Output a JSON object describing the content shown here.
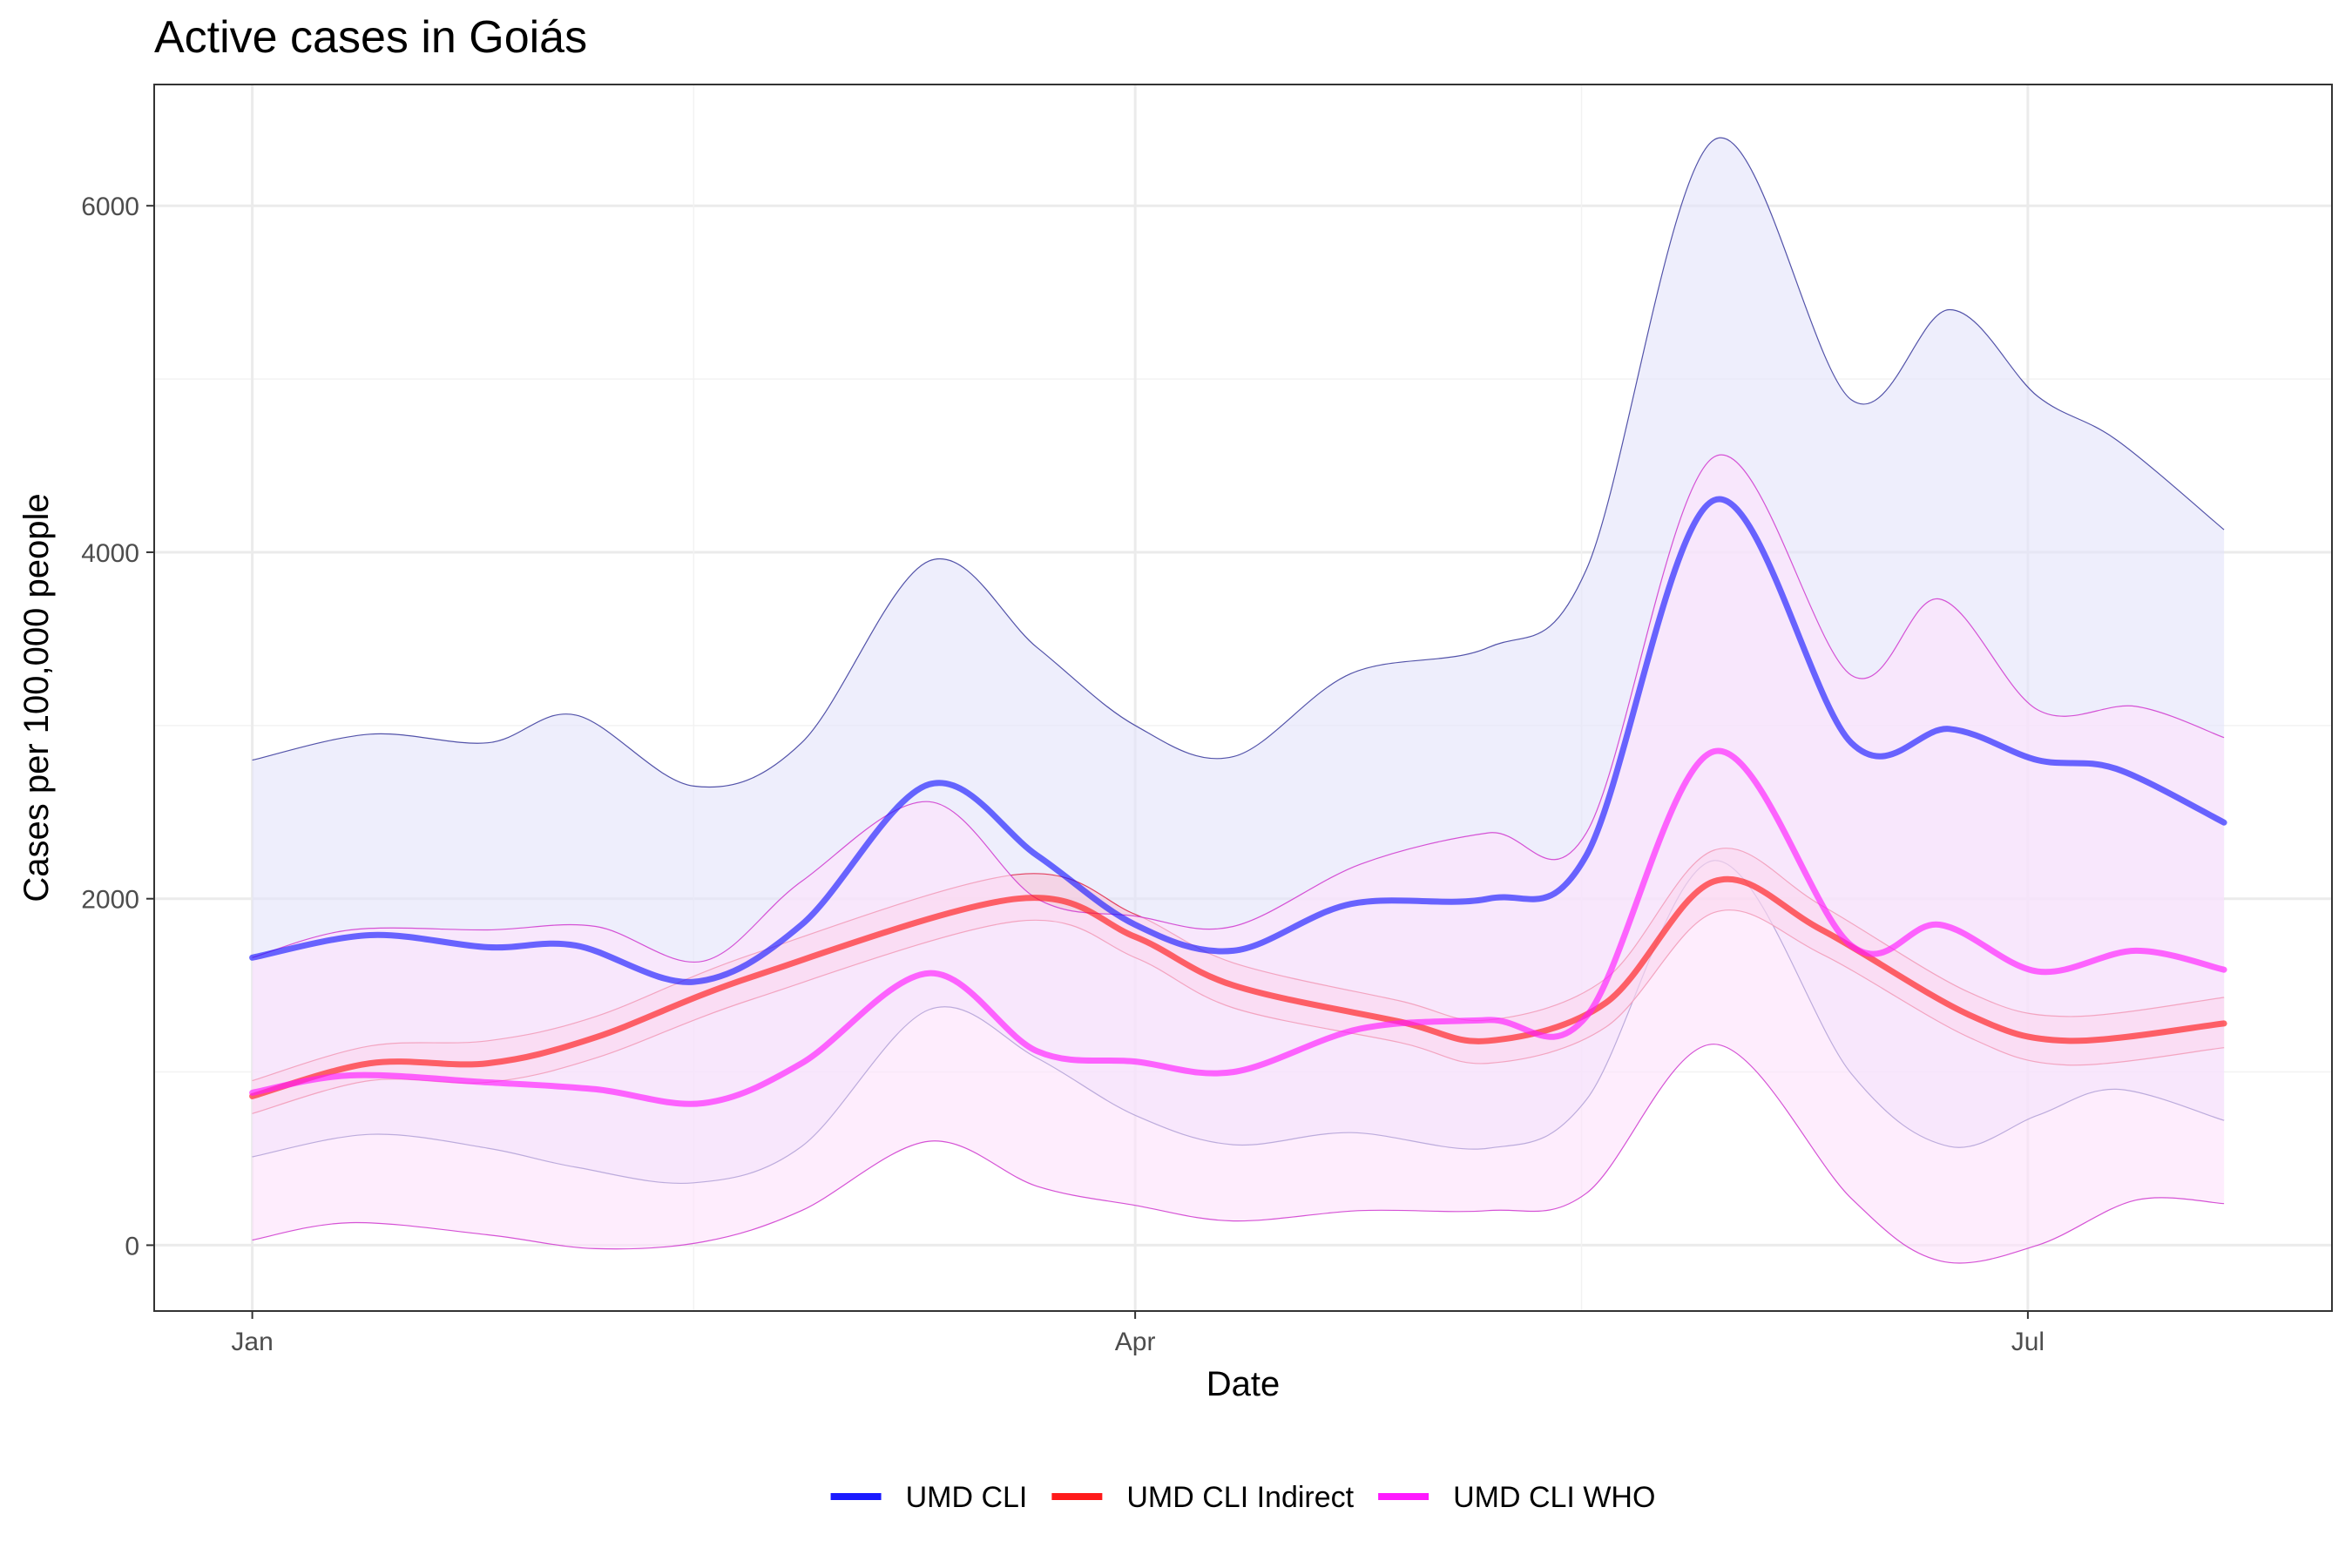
{
  "chart_data": {
    "type": "line",
    "title": "Active cases in Goiás",
    "xlabel": "Date",
    "ylabel": "Cases per 100,000 people",
    "x_ticks": [
      {
        "label": "Jan",
        "day": 0
      },
      {
        "label": "Apr",
        "day": 90
      },
      {
        "label": "Jul",
        "day": 181
      }
    ],
    "y_ticks": [
      0,
      2000,
      4000,
      6000
    ],
    "xlim_days": [
      -10,
      212
    ],
    "ylim": [
      -380,
      6700
    ],
    "grid": true,
    "legend_position": "bottom",
    "series": [
      {
        "name": "UMD CLI",
        "color": "#1a1aff",
        "band_fill": "#e3e3fa",
        "band_stroke": "#4040a0",
        "points": [
          [
            0,
            1660,
            2800,
            510
          ],
          [
            12,
            1790,
            2950,
            640
          ],
          [
            24,
            1720,
            2900,
            560
          ],
          [
            33,
            1730,
            3060,
            450
          ],
          [
            45,
            1520,
            2650,
            360
          ],
          [
            56,
            1850,
            2900,
            570
          ],
          [
            69,
            2660,
            3950,
            1360
          ],
          [
            80,
            2250,
            3450,
            1080
          ],
          [
            90,
            1850,
            3000,
            750
          ],
          [
            100,
            1700,
            2820,
            580
          ],
          [
            112,
            1970,
            3300,
            650
          ],
          [
            126,
            2000,
            3450,
            560
          ],
          [
            136,
            2250,
            3900,
            840
          ],
          [
            149,
            4300,
            6380,
            2220
          ],
          [
            163,
            2900,
            4880,
            990
          ],
          [
            173,
            2980,
            5400,
            570
          ],
          [
            182,
            2800,
            4900,
            750
          ],
          [
            190,
            2750,
            4650,
            900
          ],
          [
            201,
            2440,
            4130,
            720
          ]
        ]
      },
      {
        "name": "UMD CLI Indirect",
        "color": "#ff1a1a",
        "band_fill": "#f7c3d8",
        "band_stroke": "#e03050",
        "points": [
          [
            0,
            860,
            950,
            760
          ],
          [
            12,
            1050,
            1150,
            950
          ],
          [
            24,
            1050,
            1180,
            940
          ],
          [
            35,
            1200,
            1320,
            1080
          ],
          [
            51,
            1550,
            1680,
            1420
          ],
          [
            78,
            2000,
            2140,
            1870
          ],
          [
            90,
            1780,
            1910,
            1660
          ],
          [
            100,
            1500,
            1630,
            1370
          ],
          [
            117,
            1290,
            1410,
            1170
          ],
          [
            126,
            1180,
            1300,
            1050
          ],
          [
            138,
            1400,
            1540,
            1260
          ],
          [
            149,
            2100,
            2280,
            1920
          ],
          [
            160,
            1820,
            1960,
            1680
          ],
          [
            175,
            1330,
            1460,
            1200
          ],
          [
            185,
            1180,
            1320,
            1040
          ],
          [
            201,
            1280,
            1430,
            1140
          ]
        ]
      },
      {
        "name": "UMD CLI WHO",
        "color": "#ff1aff",
        "band_fill": "#fde2fb",
        "band_stroke": "#d040d0",
        "points": [
          [
            0,
            880,
            1660,
            30
          ],
          [
            10,
            980,
            1820,
            130
          ],
          [
            24,
            940,
            1820,
            60
          ],
          [
            35,
            900,
            1840,
            -20
          ],
          [
            46,
            820,
            1640,
            20
          ],
          [
            56,
            1050,
            2100,
            200
          ],
          [
            69,
            1570,
            2560,
            600
          ],
          [
            80,
            1120,
            2000,
            340
          ],
          [
            90,
            1060,
            1900,
            230
          ],
          [
            100,
            1000,
            1840,
            140
          ],
          [
            113,
            1250,
            2200,
            200
          ],
          [
            126,
            1300,
            2380,
            200
          ],
          [
            136,
            1320,
            2380,
            300
          ],
          [
            149,
            2850,
            4550,
            1160
          ],
          [
            163,
            1730,
            3290,
            270
          ],
          [
            172,
            1850,
            3730,
            -90
          ],
          [
            182,
            1580,
            3090,
            0
          ],
          [
            192,
            1700,
            3110,
            260
          ],
          [
            201,
            1590,
            2930,
            240
          ]
        ]
      }
    ]
  }
}
